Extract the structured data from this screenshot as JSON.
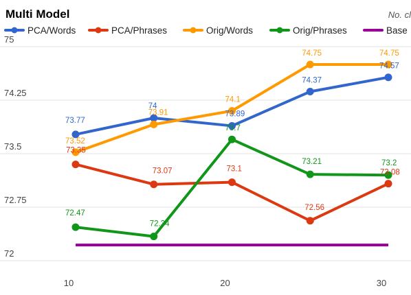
{
  "chart_data": {
    "type": "line",
    "title": "Multi Model",
    "subtitle": "No. cl",
    "xlabel": "",
    "ylabel": "",
    "x": [
      10,
      15,
      20,
      25,
      30
    ],
    "x_ticks": [
      "10",
      "20",
      "30"
    ],
    "x_tick_values": [
      10,
      20,
      30
    ],
    "xlim": [
      10,
      30
    ],
    "ylim": [
      72,
      75
    ],
    "y_ticks": [
      "72",
      "72.75",
      "73.5",
      "74.25",
      "75"
    ],
    "y_tick_values": [
      72,
      72.75,
      73.5,
      74.25,
      75
    ],
    "grid": true,
    "legend_position": "top",
    "series": [
      {
        "name": "PCA/Words",
        "color": "#3366cc",
        "values": [
          73.77,
          74,
          73.89,
          74.37,
          74.57
        ],
        "labels": [
          "73.77",
          "74",
          "73.89",
          "74.37",
          "74.57"
        ]
      },
      {
        "name": "PCA/Phrases",
        "color": "#dc3912",
        "values": [
          73.35,
          73.07,
          73.1,
          72.56,
          73.08
        ],
        "labels": [
          "73.35",
          "73.07",
          "73.1",
          "72.56",
          "73.08"
        ]
      },
      {
        "name": "Orig/Words",
        "color": "#ff9900",
        "values": [
          73.52,
          73.91,
          74.1,
          74.75,
          74.75
        ],
        "labels": [
          "73.52",
          "73.91",
          "74.1",
          "74.75",
          "74.75"
        ]
      },
      {
        "name": "Orig/Phrases",
        "color": "#109618",
        "values": [
          72.47,
          72.34,
          73.7,
          73.21,
          73.2
        ],
        "labels": [
          "72.47",
          "72.34",
          "73.7",
          "73.21",
          "73.2"
        ]
      },
      {
        "name": "Base",
        "color": "#990099",
        "values": [
          72.22,
          72.22,
          72.22,
          72.22,
          72.22
        ],
        "labels": []
      }
    ]
  }
}
